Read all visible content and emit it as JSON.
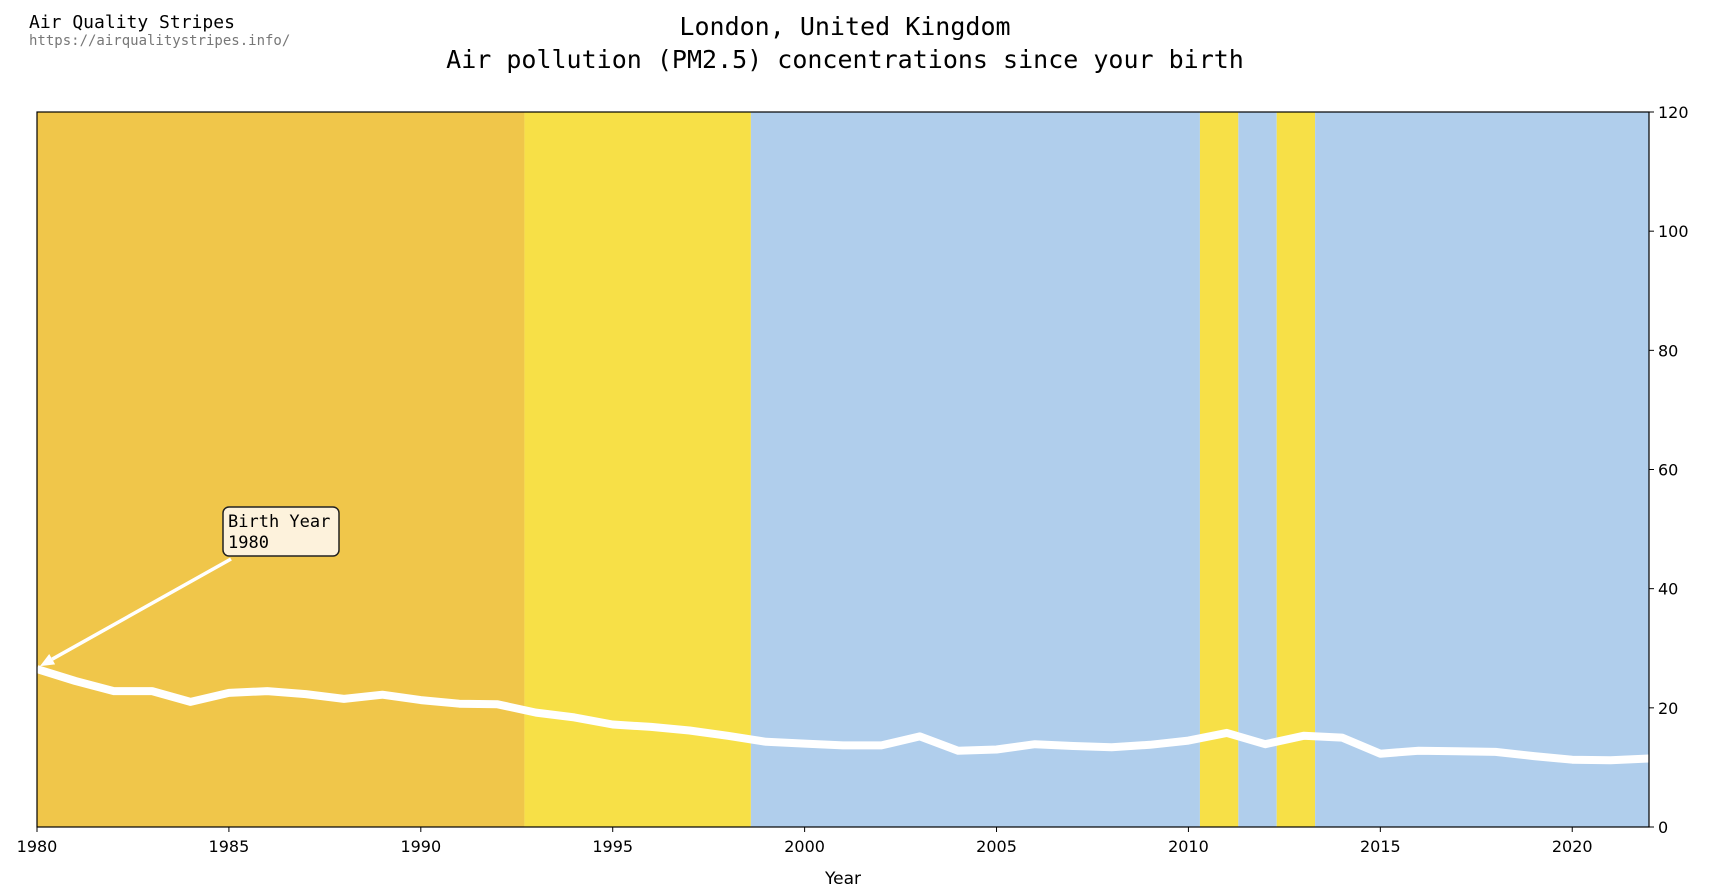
{
  "header": {
    "brand_name": "Air Quality Stripes",
    "brand_url": "https://airqualitystripes.info/"
  },
  "chart_data": {
    "type": "line",
    "title": "London, United Kingdom",
    "subtitle": "Air pollution (PM2.5) concentrations since your birth",
    "xlabel": "Year",
    "ylabel": "",
    "xlim": [
      1980,
      2022
    ],
    "ylim": [
      0,
      120
    ],
    "x_ticks": [
      1980,
      1985,
      1990,
      1995,
      2000,
      2005,
      2010,
      2015,
      2020
    ],
    "y_ticks": [
      0,
      20,
      40,
      60,
      80,
      100,
      120
    ],
    "y_axis_side": "right",
    "grid": false,
    "line_color": "#ffffff",
    "stripe_colors": {
      "high": "#f0c64a",
      "moderate": "#f7e047",
      "low": "#b0ceec"
    },
    "stripes": [
      {
        "from": 1980,
        "to": 1992.7,
        "level": "high"
      },
      {
        "from": 1992.7,
        "to": 1998.6,
        "level": "moderate"
      },
      {
        "from": 1998.6,
        "to": 2010.3,
        "level": "low"
      },
      {
        "from": 2010.3,
        "to": 2011.3,
        "level": "moderate"
      },
      {
        "from": 2011.3,
        "to": 2012.3,
        "level": "low"
      },
      {
        "from": 2012.3,
        "to": 2013.3,
        "level": "moderate"
      },
      {
        "from": 2013.3,
        "to": 2022,
        "level": "low"
      }
    ],
    "series": [
      {
        "x": [
          1980,
          1981,
          1982,
          1983,
          1984,
          1985,
          1986,
          1987,
          1988,
          1989,
          1990,
          1991,
          1992,
          1993,
          1994,
          1995,
          1996,
          1997,
          1998,
          1999,
          2000,
          2001,
          2002,
          2003,
          2004,
          2005,
          2006,
          2007,
          2008,
          2009,
          2010,
          2011,
          2012,
          2013,
          2014,
          2015,
          2016,
          2017,
          2018,
          2019,
          2020,
          2021,
          2022
        ],
        "values": [
          26.5,
          24.5,
          22.8,
          22.8,
          21.0,
          22.5,
          22.8,
          22.3,
          21.5,
          22.2,
          21.3,
          20.7,
          20.6,
          19.2,
          18.4,
          17.2,
          16.8,
          16.2,
          15.3,
          14.3,
          14.0,
          13.7,
          13.7,
          15.2,
          12.8,
          13.0,
          13.9,
          13.6,
          13.4,
          13.8,
          14.5,
          15.8,
          13.9,
          15.3,
          15.0,
          12.3,
          12.8,
          12.7,
          12.6,
          11.9,
          11.3,
          11.2,
          11.5
        ]
      }
    ],
    "annotation": {
      "line1": "Birth Year",
      "line2": "1980",
      "x": 1980,
      "y": 26.5
    }
  }
}
